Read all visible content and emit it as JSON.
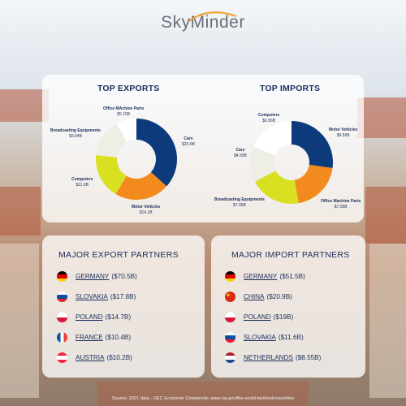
{
  "brand": {
    "name": "SkyMinder"
  },
  "top_exports": {
    "title": "TOP EXPORTS",
    "labels": [
      {
        "name": "Cars",
        "value": "$23.6B"
      },
      {
        "name": "Motor Vehicles",
        "value": "$14.1B"
      },
      {
        "name": "Computers",
        "value": "$11.6B"
      },
      {
        "name": "Broadcasting Equipments",
        "value": "$9.94B"
      },
      {
        "name": "Office MAchine Parts",
        "value": "$5.15B"
      }
    ]
  },
  "top_imports": {
    "title": "TOP IMPORTS",
    "labels": [
      {
        "name": "Motor Vehicles",
        "value": "$9.56B"
      },
      {
        "name": "Office Machine Parts",
        "value": "$7.05B"
      },
      {
        "name": "Broadcasting Equipments",
        "value": "$7.05B"
      },
      {
        "name": "Cars",
        "value": "$4.93B"
      },
      {
        "name": "Computers",
        "value": "$6.56B"
      }
    ]
  },
  "export_partners": {
    "title": "MAJOR EXPORT PARTNERS",
    "items": [
      {
        "country": "GERMANY",
        "value": "($70.5B)",
        "flag": "germany-flag"
      },
      {
        "country": "SLOVAKIA",
        "value": "($17.8B)",
        "flag": "slovakia-flag"
      },
      {
        "country": "POLAND",
        "value": "($14.7B)",
        "flag": "poland-flag"
      },
      {
        "country": "FRANCE",
        "value": "($10.4B)",
        "flag": "france-flag"
      },
      {
        "country": "AUSTRIA",
        "value": "($10.2B)",
        "flag": "austria-flag"
      }
    ]
  },
  "import_partners": {
    "title": "MAJOR IMPORT PARTNERS",
    "items": [
      {
        "country": "GERMANY",
        "value": "($51.5B)",
        "flag": "germany-flag"
      },
      {
        "country": "CHINA",
        "value": "($20.9B)",
        "flag": "china-flag"
      },
      {
        "country": "POLAND",
        "value": "($19B)",
        "flag": "poland-flag"
      },
      {
        "country": "SLOVAKIA",
        "value": "($11.6B)",
        "flag": "slovakia-flag"
      },
      {
        "country": "NETHERLANDS",
        "value": "($8.55B)",
        "flag": "netherlands-flag"
      }
    ]
  },
  "source": "Source: 2021 data - OEC Economic Complexity; www.cia.gov/the-world-factbook/countries",
  "colors": {
    "navy": "#0d3a7a",
    "orange": "#f28a1e",
    "yellow": "#d8e021",
    "light": "#eeeee4",
    "white": "#ffffff",
    "title": "#1a2f5a"
  },
  "chart_data": [
    {
      "type": "pie",
      "title": "TOP EXPORTS",
      "categories": [
        "Cars",
        "Motor Vehicles",
        "Computers",
        "Broadcasting Equipments",
        "Office MAchine Parts"
      ],
      "values": [
        23.6,
        14.1,
        11.6,
        9.94,
        5.15
      ],
      "colors": [
        "#0d3a7a",
        "#f28a1e",
        "#d8e021",
        "#eeeee4",
        "#ffffff"
      ]
    },
    {
      "type": "pie",
      "title": "TOP IMPORTS",
      "categories": [
        "Motor Vehicles",
        "Office Machine Parts",
        "Broadcasting Equipments",
        "Cars",
        "Computers"
      ],
      "values": [
        9.56,
        7.05,
        7.05,
        4.93,
        6.56
      ],
      "colors": [
        "#0d3a7a",
        "#f28a1e",
        "#d8e021",
        "#eeeee4",
        "#ffffff"
      ]
    }
  ]
}
